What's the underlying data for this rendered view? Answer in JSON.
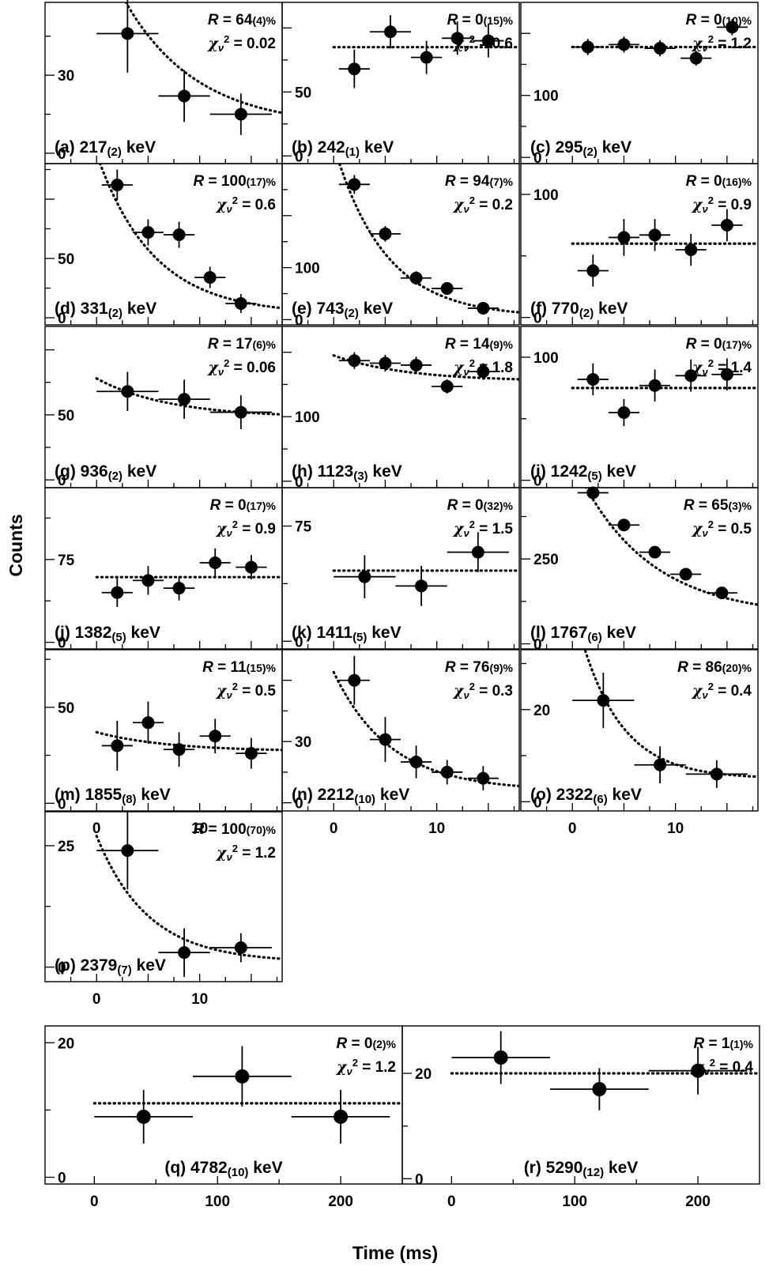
{
  "figure": {
    "ylabel": "Counts",
    "xlabel": "Time (ms)",
    "grid": false
  },
  "chart_data": [
    {
      "type": "scatter",
      "label": "(a)",
      "energy": "217",
      "energy_err": "(2)",
      "R": "64",
      "R_err": "(4)",
      "chi2": "0.02",
      "yticks": [
        0,
        30
      ],
      "xlim": [
        -5,
        18
      ],
      "ylim": [
        -4,
        58
      ],
      "points": [
        {
          "x": 3,
          "xe": 3,
          "y": 46,
          "ye": 15
        },
        {
          "x": 8.5,
          "xe": 2.5,
          "y": 22,
          "ye": 10
        },
        {
          "x": 14,
          "xe": 3,
          "y": 15,
          "ye": 8
        }
      ],
      "fit": {
        "kind": "exp",
        "A": 72,
        "tau": 7,
        "C": 10
      }
    },
    {
      "type": "scatter",
      "label": "(b)",
      "energy": "242",
      "energy_err": "(1)",
      "R": "0",
      "R_err": "(15)",
      "chi2": "0.6",
      "yticks": [
        0,
        50
      ],
      "xlim": [
        -5,
        18
      ],
      "ylim": [
        -6,
        120
      ],
      "points": [
        {
          "x": 2,
          "xe": 1.5,
          "y": 68,
          "ye": 15
        },
        {
          "x": 5.5,
          "xe": 2,
          "y": 97,
          "ye": 13
        },
        {
          "x": 9,
          "xe": 1.5,
          "y": 77,
          "ye": 13
        },
        {
          "x": 12,
          "xe": 1.5,
          "y": 92,
          "ye": 13
        },
        {
          "x": 15,
          "xe": 1.5,
          "y": 90,
          "ye": 13
        }
      ],
      "fit": {
        "kind": "flat",
        "C": 85
      }
    },
    {
      "type": "scatter",
      "label": "(c)",
      "energy": "295",
      "energy_err": "(2)",
      "R": "0",
      "R_err": "(10)",
      "chi2": "1.2",
      "yticks": [
        0,
        100
      ],
      "xlim": [
        -5,
        18
      ],
      "ylim": [
        -10,
        250
      ],
      "points": [
        {
          "x": 1.5,
          "xe": 1.5,
          "y": 178,
          "ye": 13
        },
        {
          "x": 5,
          "xe": 1.5,
          "y": 182,
          "ye": 13
        },
        {
          "x": 8.5,
          "xe": 1.5,
          "y": 176,
          "ye": 13
        },
        {
          "x": 12,
          "xe": 1.5,
          "y": 160,
          "ye": 12
        },
        {
          "x": 15.5,
          "xe": 1.5,
          "y": 210,
          "ye": 13
        }
      ],
      "fit": {
        "kind": "flat",
        "C": 178
      }
    },
    {
      "type": "scatter",
      "label": "(d)",
      "energy": "331",
      "energy_err": "(2)",
      "R": "100",
      "R_err": "(17)",
      "chi2": "0.6",
      "yticks": [
        0,
        50
      ],
      "xlim": [
        -5,
        18
      ],
      "ylim": [
        -6,
        130
      ],
      "points": [
        {
          "x": 2,
          "xe": 1.5,
          "y": 112,
          "ye": 13
        },
        {
          "x": 5,
          "xe": 1.5,
          "y": 72,
          "ye": 11
        },
        {
          "x": 8,
          "xe": 1.5,
          "y": 70,
          "ye": 11
        },
        {
          "x": 11,
          "xe": 1.5,
          "y": 34,
          "ye": 9
        },
        {
          "x": 14,
          "xe": 1.5,
          "y": 12,
          "ye": 8
        }
      ],
      "fit": {
        "kind": "exp",
        "A": 135,
        "tau": 5.5,
        "C": 3
      }
    },
    {
      "type": "scatter",
      "label": "(e)",
      "energy": "743",
      "energy_err": "(2)",
      "R": "94",
      "R_err": "(7)",
      "chi2": "0.2",
      "yticks": [
        0,
        100
      ],
      "xlim": [
        -5,
        18
      ],
      "ylim": [
        -10,
        300
      ],
      "points": [
        {
          "x": 2,
          "xe": 1.5,
          "y": 260,
          "ye": 18
        },
        {
          "x": 5,
          "xe": 1.5,
          "y": 165,
          "ye": 15
        },
        {
          "x": 8,
          "xe": 1.5,
          "y": 80,
          "ye": 13
        },
        {
          "x": 11,
          "xe": 1.5,
          "y": 60,
          "ye": 12
        },
        {
          "x": 14.5,
          "xe": 1.5,
          "y": 22,
          "ye": 10
        }
      ],
      "fit": {
        "kind": "exp",
        "A": 330,
        "tau": 5,
        "C": 5
      }
    },
    {
      "type": "scatter",
      "label": "(f)",
      "energy": "770",
      "energy_err": "(2)",
      "R": "0",
      "R_err": "(16)",
      "chi2": "0.9",
      "yticks": [
        0,
        100
      ],
      "xlim": [
        -5,
        18
      ],
      "ylim": [
        -6,
        125
      ],
      "points": [
        {
          "x": 2,
          "xe": 1.5,
          "y": 38,
          "ye": 13
        },
        {
          "x": 5,
          "xe": 1.5,
          "y": 65,
          "ye": 15
        },
        {
          "x": 8,
          "xe": 1.5,
          "y": 67,
          "ye": 13
        },
        {
          "x": 11.5,
          "xe": 1.5,
          "y": 55,
          "ye": 13
        },
        {
          "x": 15,
          "xe": 1.5,
          "y": 75,
          "ye": 13
        }
      ],
      "fit": {
        "kind": "flat",
        "C": 60
      }
    },
    {
      "type": "scatter",
      "label": "(g)",
      "energy": "936",
      "energy_err": "(2)",
      "R": "17",
      "R_err": "(6)",
      "chi2": "0.06",
      "yticks": [
        0,
        50
      ],
      "xlim": [
        -5,
        18
      ],
      "ylim": [
        -6,
        118
      ],
      "points": [
        {
          "x": 3,
          "xe": 3,
          "y": 68,
          "ye": 15
        },
        {
          "x": 8.5,
          "xe": 2.5,
          "y": 62,
          "ye": 15
        },
        {
          "x": 14,
          "xe": 3,
          "y": 52,
          "ye": 13
        }
      ],
      "fit": {
        "kind": "exp",
        "A": 30,
        "tau": 7,
        "C": 48
      }
    },
    {
      "type": "scatter",
      "label": "(h)",
      "energy": "1123",
      "energy_err": "(3)",
      "R": "14",
      "R_err": "(9)",
      "chi2": "1.8",
      "yticks": [
        0,
        100
      ],
      "xlim": [
        -5,
        18
      ],
      "ylim": [
        -10,
        240
      ],
      "points": [
        {
          "x": 2,
          "xe": 1.5,
          "y": 187,
          "ye": 13
        },
        {
          "x": 5,
          "xe": 1.5,
          "y": 183,
          "ye": 13
        },
        {
          "x": 8,
          "xe": 1.5,
          "y": 180,
          "ye": 13
        },
        {
          "x": 11,
          "xe": 1.5,
          "y": 147,
          "ye": 11
        },
        {
          "x": 14.5,
          "xe": 1.5,
          "y": 170,
          "ye": 13
        }
      ],
      "fit": {
        "kind": "exp",
        "A": 40,
        "tau": 7,
        "C": 155
      }
    },
    {
      "type": "scatter",
      "label": "(i)",
      "energy": "1242",
      "energy_err": "(5)",
      "R": "0",
      "R_err": "(17)",
      "chi2": "1.4",
      "yticks": [
        0,
        100
      ],
      "xlim": [
        -5,
        18
      ],
      "ylim": [
        -6,
        125
      ],
      "points": [
        {
          "x": 2,
          "xe": 1.5,
          "y": 82,
          "ye": 13
        },
        {
          "x": 5,
          "xe": 1.5,
          "y": 55,
          "ye": 11
        },
        {
          "x": 8,
          "xe": 1.5,
          "y": 77,
          "ye": 13
        },
        {
          "x": 11.5,
          "xe": 1.5,
          "y": 85,
          "ye": 13
        },
        {
          "x": 15,
          "xe": 1.5,
          "y": 86,
          "ye": 13
        }
      ],
      "fit": {
        "kind": "flat",
        "C": 75
      }
    },
    {
      "type": "scatter",
      "label": "(j)",
      "energy": "1382",
      "energy_err": "(5)",
      "R": "0",
      "R_err": "(17)",
      "chi2": "0.9",
      "yticks": [
        0,
        75
      ],
      "xlim": [
        -5,
        18
      ],
      "ylim": [
        -6,
        140
      ],
      "points": [
        {
          "x": 2,
          "xe": 1.5,
          "y": 45,
          "ye": 13
        },
        {
          "x": 5,
          "xe": 1.5,
          "y": 56,
          "ye": 13
        },
        {
          "x": 8,
          "xe": 1.5,
          "y": 49,
          "ye": 11
        },
        {
          "x": 11.5,
          "xe": 1.5,
          "y": 72,
          "ye": 13
        },
        {
          "x": 15,
          "xe": 1.5,
          "y": 68,
          "ye": 11
        }
      ],
      "fit": {
        "kind": "flat",
        "C": 59
      }
    },
    {
      "type": "scatter",
      "label": "(k)",
      "energy": "1411",
      "energy_err": "(5)",
      "R": "0",
      "R_err": "(32)",
      "chi2": "1.5",
      "yticks": [
        0,
        75
      ],
      "xlim": [
        -5,
        18
      ],
      "ylim": [
        -5,
        100
      ],
      "points": [
        {
          "x": 3,
          "xe": 3,
          "y": 42,
          "ye": 14
        },
        {
          "x": 8.5,
          "xe": 2.5,
          "y": 36,
          "ye": 13
        },
        {
          "x": 14,
          "xe": 3,
          "y": 58,
          "ye": 13
        }
      ],
      "fit": {
        "kind": "flat",
        "C": 46
      }
    },
    {
      "type": "scatter",
      "label": "(l)",
      "energy": "1767",
      "energy_err": "(6)",
      "R": "65",
      "R_err": "(3)",
      "chi2": "0.5",
      "yticks": [
        0,
        250
      ],
      "xlim": [
        -5,
        18
      ],
      "ylim": [
        -15,
        460
      ],
      "points": [
        {
          "x": 2,
          "xe": 1.5,
          "y": 445,
          "ye": 18
        },
        {
          "x": 5,
          "xe": 1.5,
          "y": 350,
          "ye": 15
        },
        {
          "x": 8,
          "xe": 1.5,
          "y": 270,
          "ye": 13
        },
        {
          "x": 11,
          "xe": 1.5,
          "y": 205,
          "ye": 13
        },
        {
          "x": 14.5,
          "xe": 1.5,
          "y": 150,
          "ye": 12
        }
      ],
      "fit": {
        "kind": "exp",
        "A": 460,
        "tau": 7,
        "C": 80
      }
    },
    {
      "type": "scatter",
      "label": "(m)",
      "energy": "1855",
      "energy_err": "(8)",
      "R": "11",
      "R_err": "(15)",
      "chi2": "0.5",
      "yticks": [
        0,
        50
      ],
      "xlim": [
        -5,
        18
      ],
      "ylim": [
        -4,
        80
      ],
      "points": [
        {
          "x": 2,
          "xe": 1.5,
          "y": 30,
          "ye": 13
        },
        {
          "x": 5,
          "xe": 1.5,
          "y": 42,
          "ye": 11
        },
        {
          "x": 8,
          "xe": 1.5,
          "y": 28,
          "ye": 9
        },
        {
          "x": 11.5,
          "xe": 1.5,
          "y": 35,
          "ye": 9
        },
        {
          "x": 15,
          "xe": 1.5,
          "y": 26,
          "ye": 8
        }
      ],
      "fit": {
        "kind": "exp",
        "A": 10,
        "tau": 7,
        "C": 27
      }
    },
    {
      "type": "scatter",
      "label": "(n)",
      "energy": "2212",
      "energy_err": "(10)",
      "R": "76",
      "R_err": "(9)",
      "chi2": "0.3",
      "yticks": [
        0,
        30
      ],
      "xlim": [
        -5,
        18
      ],
      "ylim": [
        -4,
        75
      ],
      "points": [
        {
          "x": 2,
          "xe": 1.5,
          "y": 60,
          "ye": 12
        },
        {
          "x": 5,
          "xe": 1.5,
          "y": 31,
          "ye": 11
        },
        {
          "x": 8,
          "xe": 1.5,
          "y": 20,
          "ye": 8
        },
        {
          "x": 11,
          "xe": 1.5,
          "y": 15,
          "ye": 6
        },
        {
          "x": 14.5,
          "xe": 1.5,
          "y": 12,
          "ye": 6
        }
      ],
      "fit": {
        "kind": "exp",
        "A": 58,
        "tau": 5.5,
        "C": 6
      }
    },
    {
      "type": "scatter",
      "label": "(o)",
      "energy": "2322",
      "energy_err": "(6)",
      "R": "86",
      "R_err": "(20)",
      "chi2": "0.4",
      "yticks": [
        0,
        20
      ],
      "xlim": [
        -5,
        18
      ],
      "ylim": [
        -2,
        33
      ],
      "points": [
        {
          "x": 3,
          "xe": 3,
          "y": 22,
          "ye": 6
        },
        {
          "x": 8.5,
          "xe": 2.5,
          "y": 8,
          "ye": 4
        },
        {
          "x": 14,
          "xe": 3,
          "y": 6,
          "ye": 3
        }
      ],
      "fit": {
        "kind": "exp",
        "A": 38,
        "tau": 4,
        "C": 5
      }
    },
    {
      "type": "scatter",
      "label": "(p)",
      "energy": "2379",
      "energy_err": "(7)",
      "R": "100",
      "R_err": "(70)",
      "chi2": "1.2",
      "yticks": [
        0,
        25
      ],
      "xlim": [
        -5,
        18
      ],
      "ylim": [
        -3,
        32
      ],
      "points": [
        {
          "x": 3,
          "xe": 3,
          "y": 24,
          "ye": 8
        },
        {
          "x": 8.5,
          "xe": 2.5,
          "y": 3,
          "ye": 5
        },
        {
          "x": 14,
          "xe": 3,
          "y": 4,
          "ye": 3
        }
      ],
      "fit": {
        "kind": "exp",
        "A": 26,
        "tau": 5,
        "C": 1
      }
    },
    {
      "type": "scatter",
      "label": "(q)",
      "energy": "4782",
      "energy_err": "(10)",
      "R": "0",
      "R_err": "(2)",
      "chi2": "1.2",
      "yticks": [
        0,
        20
      ],
      "xlim": [
        -40,
        250
      ],
      "ylim": [
        -1,
        22.5
      ],
      "points": [
        {
          "x": 40,
          "xe": 40,
          "y": 9,
          "ye": 4
        },
        {
          "x": 120,
          "xe": 40,
          "y": 15,
          "ye": 4.5
        },
        {
          "x": 200,
          "xe": 40,
          "y": 9,
          "ye": 4
        }
      ],
      "fit": {
        "kind": "flat",
        "C": 11
      }
    },
    {
      "type": "scatter",
      "label": "(r)",
      "energy": "5290",
      "energy_err": "(12)",
      "R": "1",
      "R_err": "(1)",
      "chi2": "0.4",
      "yticks": [
        0,
        20
      ],
      "xlim": [
        -40,
        250
      ],
      "ylim": [
        -1,
        29
      ],
      "points": [
        {
          "x": 40,
          "xe": 40,
          "y": 23,
          "ye": 5
        },
        {
          "x": 120,
          "xe": 40,
          "y": 17,
          "ye": 4
        },
        {
          "x": 200,
          "xe": 40,
          "y": 20.5,
          "ye": 4.5
        }
      ],
      "fit": {
        "kind": "flat",
        "C": 20
      }
    }
  ]
}
